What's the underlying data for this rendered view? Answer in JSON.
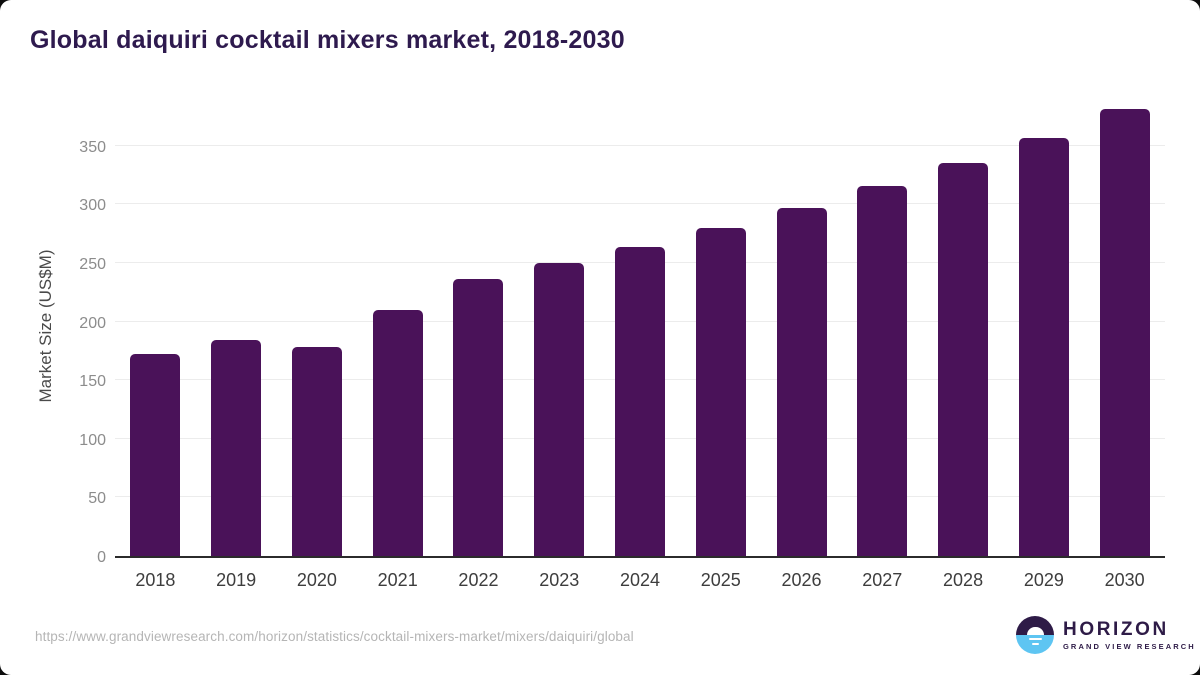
{
  "page": {
    "source_url": "https://www.grandviewresearch.com/horizon/statistics/cocktail-mixers-market/mixers/daiquiri/global"
  },
  "chart_data": {
    "type": "bar",
    "title": "Global daiquiri cocktail mixers market, 2018-2030",
    "categories": [
      "2018",
      "2019",
      "2020",
      "2021",
      "2022",
      "2023",
      "2024",
      "2025",
      "2026",
      "2027",
      "2028",
      "2029",
      "2030"
    ],
    "values": [
      172,
      184,
      178,
      210,
      236,
      250,
      264,
      280,
      297,
      316,
      335,
      357,
      381
    ],
    "xlabel": "",
    "ylabel": "Market Size (US$M)",
    "ylim": [
      0,
      395
    ],
    "yticks": [
      0,
      50,
      100,
      150,
      200,
      250,
      300,
      350
    ],
    "grid": true,
    "legend": false,
    "bar_color": "#4a1259"
  },
  "branding": {
    "logo_name": "HORIZON",
    "logo_subtitle": "GRAND VIEW RESEARCH"
  },
  "colors": {
    "bar": "#4a1259",
    "title_text": "#2e1a4e",
    "gridline": "#ececec",
    "axis_line": "#2b2b2b",
    "y_tick_text": "#8c8c8c",
    "x_tick_text": "#3d3d3d",
    "url_text": "#b5b5b5",
    "logo_purple": "#2e1b47",
    "logo_blue": "#5ec5f2"
  }
}
